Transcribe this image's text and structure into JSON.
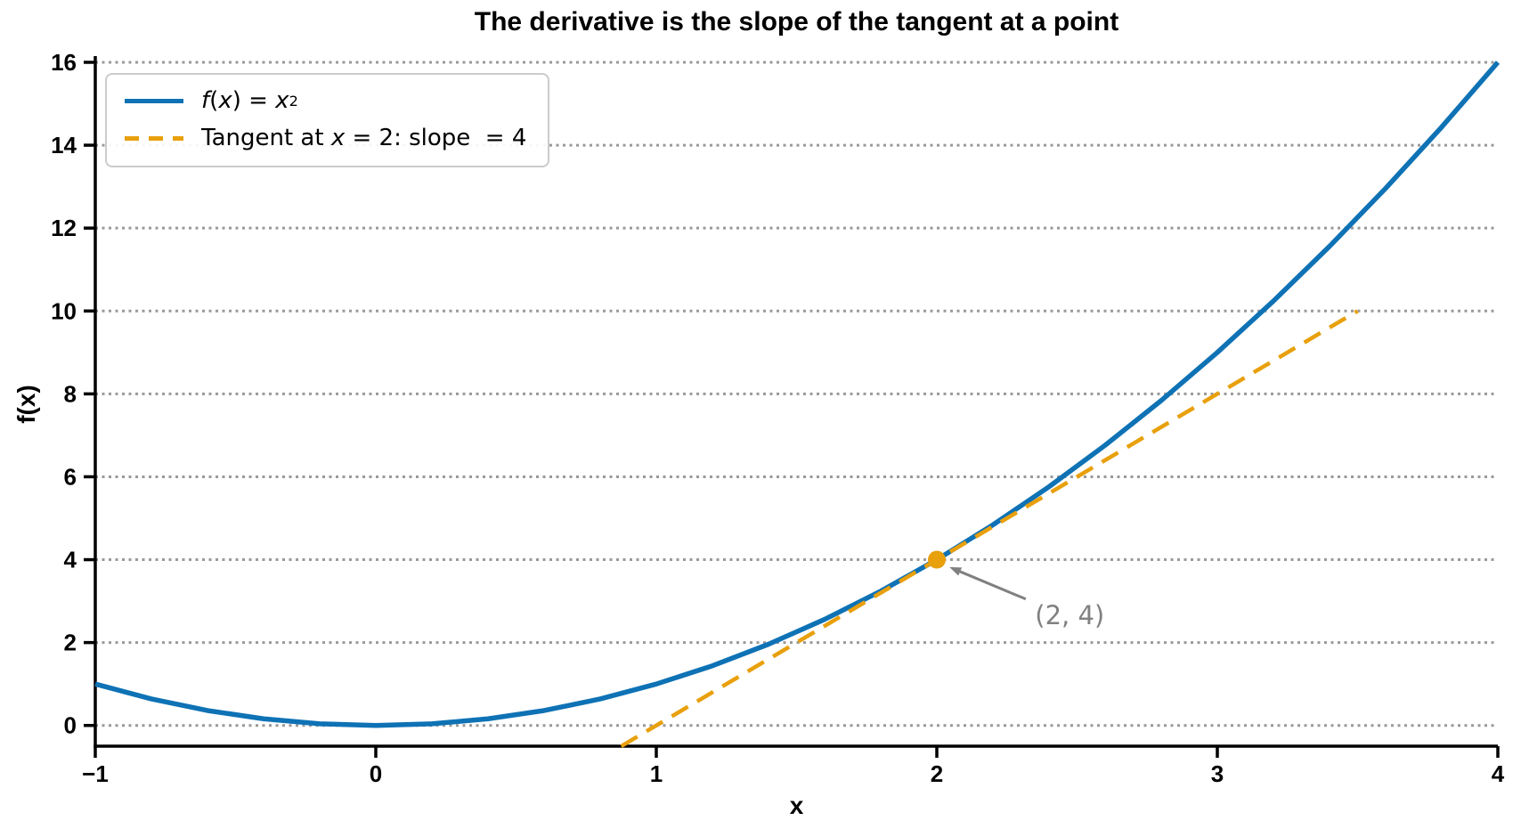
{
  "colors": {
    "background": "#FFFFFF",
    "axis": "#000000",
    "grid": "#999999",
    "curve": "#0E72B5",
    "tangent": "#E8A00C",
    "marker": "#E8A00C",
    "annotation": "#808080",
    "legend_border": "#CCCCCC"
  },
  "chart_data": {
    "type": "line",
    "title": "The derivative is the slope of the tangent at a point",
    "xlabel": "x",
    "ylabel": "f(x)",
    "xlim": [
      -1,
      4
    ],
    "ylim": [
      -0.5,
      16.15
    ],
    "x_ticks": [
      -1,
      0,
      1,
      2,
      3,
      4
    ],
    "y_ticks": [
      0,
      2,
      4,
      6,
      8,
      10,
      12,
      14,
      16
    ],
    "grid": {
      "axis": "y",
      "style": "dotted",
      "color": "#999999"
    },
    "series": [
      {
        "name": "f(x) = x^2",
        "color": "#0E72B5",
        "style": "solid",
        "width": 5.5,
        "points": [
          [
            -1.0,
            1.0
          ],
          [
            -0.8,
            0.64
          ],
          [
            -0.6,
            0.36
          ],
          [
            -0.4,
            0.16
          ],
          [
            -0.2,
            0.04
          ],
          [
            0.0,
            0.0
          ],
          [
            0.2,
            0.04
          ],
          [
            0.4,
            0.16
          ],
          [
            0.6,
            0.36
          ],
          [
            0.8,
            0.64
          ],
          [
            1.0,
            1.0
          ],
          [
            1.2,
            1.44
          ],
          [
            1.4,
            1.96
          ],
          [
            1.6,
            2.56
          ],
          [
            1.8,
            3.24
          ],
          [
            2.0,
            4.0
          ],
          [
            2.2,
            4.84
          ],
          [
            2.4,
            5.76
          ],
          [
            2.6,
            6.76
          ],
          [
            2.8,
            7.84
          ],
          [
            3.0,
            9.0
          ],
          [
            3.2,
            10.24
          ],
          [
            3.4,
            11.56
          ],
          [
            3.6,
            12.96
          ],
          [
            3.8,
            14.44
          ],
          [
            4.0,
            16.0
          ]
        ]
      },
      {
        "name": "Tangent at x = 2: slope = 4",
        "color": "#E8A00C",
        "style": "dashed",
        "width": 4.5,
        "points": [
          [
            0.875,
            -0.5
          ],
          [
            3.5,
            10.0
          ]
        ]
      }
    ],
    "marker": {
      "x": 2,
      "y": 4,
      "radius": 10,
      "color": "#E8A00C"
    },
    "annotation": {
      "text": "(2, 4)",
      "color": "#808080",
      "xy": [
        2,
        4
      ],
      "text_xy": [
        2.35,
        2.44
      ],
      "arrow_start": [
        2.317,
        3.05
      ],
      "arrow_end": [
        2.045,
        3.82
      ]
    },
    "legend": {
      "position": "upper-left",
      "items": [
        {
          "style": "solid",
          "parts": [
            {
              "text": "f",
              "style": "italic"
            },
            {
              "text": "(",
              "style": "normal"
            },
            {
              "text": "x",
              "style": "italic"
            },
            {
              "text": ") = ",
              "style": "normal"
            },
            {
              "text": "x",
              "style": "italic"
            },
            {
              "text": "2",
              "style": "sup"
            }
          ]
        },
        {
          "style": "dashed",
          "parts": [
            {
              "text": "Tangent at ",
              "style": "normal"
            },
            {
              "text": "x",
              "style": "italic"
            },
            {
              "text": " = 2: slope  = 4",
              "style": "normal"
            }
          ]
        }
      ]
    }
  }
}
